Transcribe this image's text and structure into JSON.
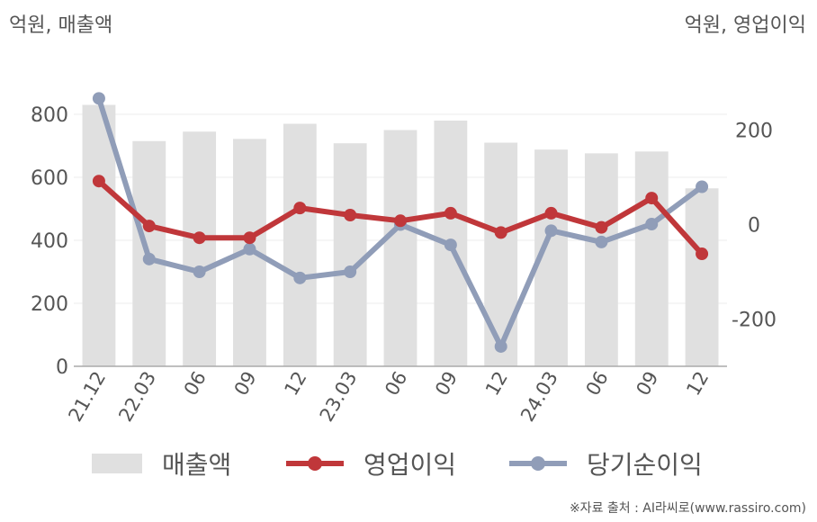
{
  "left_unit": "억원, 매출액",
  "right_unit": "억원, 영업이익",
  "source": "※자료 출처 : AI라씨로(www.rassiro.com)",
  "colors": {
    "revenue": "#e0e0e0",
    "operating_profit": "#c0373a",
    "net_income": "#909db8",
    "grid": "#ececec",
    "axis": "#aaaaaa"
  },
  "chart_data": {
    "type": "bar",
    "categories": [
      "21.12",
      "22.03",
      "06",
      "09",
      "12",
      "23.03",
      "06",
      "09",
      "12",
      "24.03",
      "06",
      "09",
      "12"
    ],
    "y_left": {
      "ticks": [
        "0",
        "200",
        "400",
        "600",
        "800"
      ],
      "ylim": [
        0,
        900
      ]
    },
    "y_right": {
      "ticks": [
        "-200",
        "0",
        "200"
      ],
      "ylim": [
        -300,
        300
      ]
    },
    "series": [
      {
        "name": "매출액",
        "type": "bar",
        "axis": "left",
        "values": [
          830,
          715,
          745,
          722,
          770,
          708,
          750,
          780,
          710,
          688,
          676,
          682,
          565
        ]
      },
      {
        "name": "영업이익",
        "type": "line",
        "axis": "right",
        "values": [
          92,
          -3,
          -28,
          -28,
          35,
          20,
          8,
          24,
          -17,
          24,
          -6,
          56,
          -62
        ]
      },
      {
        "name": "당기순이익",
        "type": "line",
        "axis": "right",
        "values": [
          267,
          -73,
          -100,
          -52,
          -113,
          -100,
          0,
          -43,
          -258,
          -13,
          -37,
          1,
          80
        ]
      }
    ],
    "grid": true,
    "legend": "bottom"
  }
}
